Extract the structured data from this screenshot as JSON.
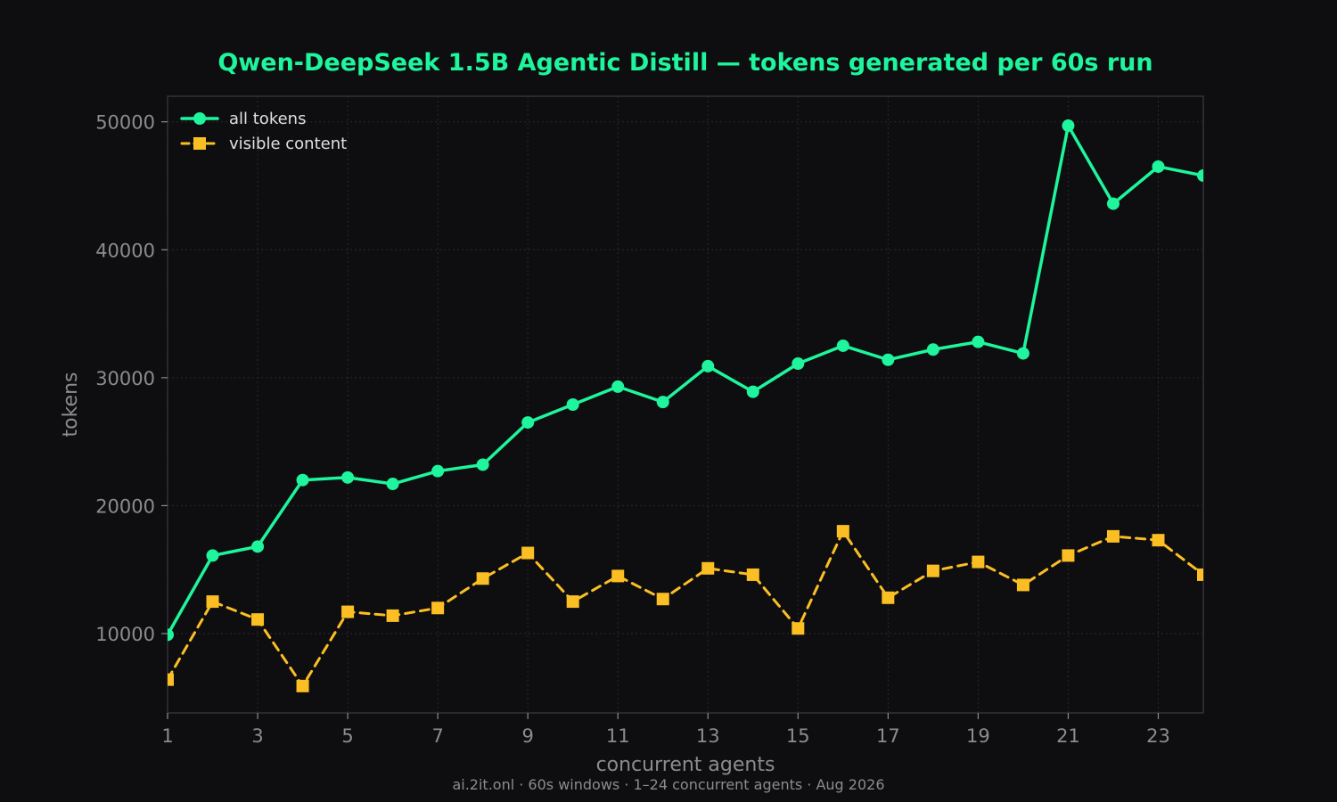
{
  "colors": {
    "background": "#0e0e10",
    "title": "#1ef59c",
    "all_tokens": "#1ef59c",
    "visible_content": "#fbbf24",
    "grid": "#2a2a2e",
    "frame": "#333338",
    "text_muted": "#8c8c8c",
    "legend_text": "#e0e0e0"
  },
  "footer": "ai.2it.onl · 60s windows · 1–24 concurrent agents · Aug 2026",
  "chart_data": {
    "type": "line",
    "title": "Qwen-DeepSeek 1.5B Agentic Distill — tokens generated per 60s run",
    "xlabel": "concurrent agents",
    "ylabel": "tokens",
    "x": [
      1,
      2,
      3,
      4,
      5,
      6,
      7,
      8,
      9,
      10,
      11,
      12,
      13,
      14,
      15,
      16,
      17,
      18,
      19,
      20,
      21,
      22,
      23,
      24
    ],
    "xlim": [
      1,
      24
    ],
    "ylim": [
      3800,
      52000
    ],
    "xticks": [
      1,
      3,
      5,
      7,
      9,
      11,
      13,
      15,
      17,
      19,
      21,
      23
    ],
    "yticks": [
      10000,
      20000,
      30000,
      40000,
      50000
    ],
    "grid": true,
    "legend_position": "top-left",
    "series": [
      {
        "name": "all tokens",
        "style": "solid",
        "marker": "circle",
        "color": "#1ef59c",
        "values": [
          9900,
          16100,
          16800,
          22000,
          22200,
          21700,
          22700,
          23200,
          26500,
          27900,
          29300,
          28100,
          30900,
          28900,
          31100,
          32500,
          31400,
          32200,
          32800,
          31900,
          49700,
          43600,
          46500,
          45800
        ]
      },
      {
        "name": "visible content",
        "style": "dashed",
        "marker": "square",
        "color": "#fbbf24",
        "values": [
          6400,
          12500,
          11100,
          5900,
          11700,
          11400,
          12000,
          14300,
          16300,
          12500,
          14500,
          12700,
          15100,
          14600,
          10400,
          18000,
          12800,
          14900,
          15600,
          13800,
          16100,
          17600,
          17300,
          14600
        ]
      }
    ]
  }
}
